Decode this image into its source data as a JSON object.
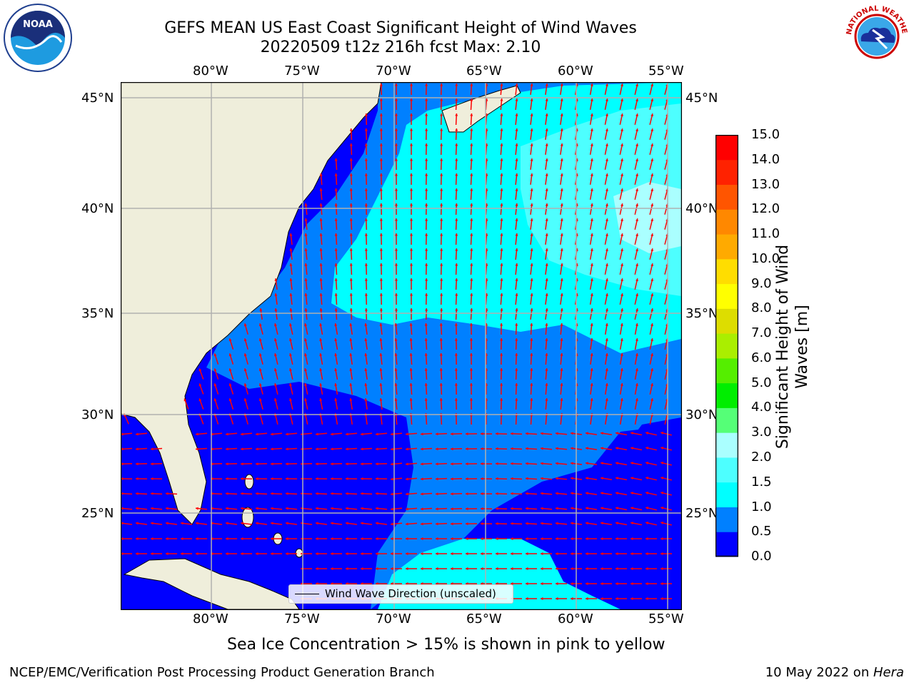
{
  "title": {
    "line1": "GEFS MEAN US East Coast Significant Height of Wind Waves",
    "line2": "20220509 t12z 216h fcst   Max: 2.10"
  },
  "logos": {
    "left": "NOAA",
    "right": "NATIONAL WEATHER SERVICE"
  },
  "map": {
    "lon_ticks": [
      "80°W",
      "75°W",
      "70°W",
      "65°W",
      "60°W",
      "55°W"
    ],
    "lat_ticks": [
      "45°N",
      "40°N",
      "35°N",
      "30°N",
      "25°N"
    ],
    "legend": "Wind Wave Direction (unscaled)",
    "colors": {
      "land": "#efeedb",
      "grid": "#b0b0b0",
      "arrow": "#ff0000"
    }
  },
  "colorbar": {
    "label_line1": "Significant Height of Wind",
    "label_line2": "Waves [m]",
    "ticks": [
      "0.0",
      "0.5",
      "1.0",
      "1.5",
      "2.0",
      "3.0",
      "4.0",
      "5.0",
      "6.0",
      "7.0",
      "8.0",
      "9.0",
      "10.0",
      "11.0",
      "12.0",
      "13.0",
      "14.0",
      "15.0"
    ],
    "colors": [
      "#0000ff",
      "#0080ff",
      "#00ffff",
      "#4dffff",
      "#aaffff",
      "#55ff77",
      "#00ee00",
      "#55ee00",
      "#aaee00",
      "#dddd00",
      "#ffff00",
      "#ffdd00",
      "#ffaa00",
      "#ff8800",
      "#ff5500",
      "#ff2200",
      "#ff0000"
    ]
  },
  "ice_note": "Sea Ice Concentration > 15% is shown in pink to yellow",
  "footer": {
    "left": "NCEP/EMC/Verification Post Processing Product Generation Branch",
    "right_date": "10 May 2022 on ",
    "right_machine": "Hera"
  }
}
